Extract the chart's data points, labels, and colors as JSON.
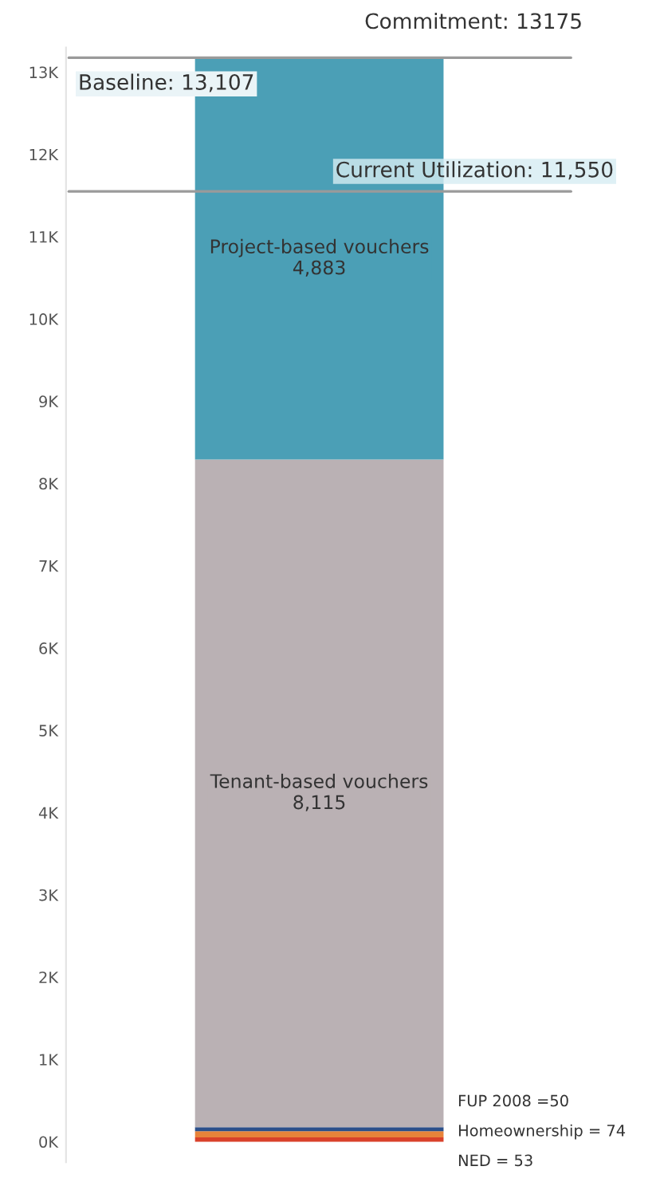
{
  "chart_data": {
    "type": "bar",
    "stacked": true,
    "categories": [
      null
    ],
    "series": [
      {
        "name": "NED",
        "color": "#d9412b",
        "values": [
          53
        ],
        "value_labels": [
          "= 53"
        ]
      },
      {
        "name": "Homeownership",
        "color": "#e8833a",
        "values": [
          74
        ],
        "value_labels": [
          "= 74"
        ]
      },
      {
        "name": "FUP 2008",
        "color": "#2b4f8a",
        "values": [
          50
        ],
        "value_labels": [
          "=50"
        ]
      },
      {
        "name": "Tenant-based vouchers",
        "color": "#bab1b4",
        "values": [
          8115
        ],
        "value_labels": [
          "8,115"
        ]
      },
      {
        "name": "Project-based vouchers",
        "color": "#4b9fb6",
        "values": [
          4883
        ],
        "value_labels": [
          "4,883"
        ]
      }
    ],
    "ylim": [
      -250,
      13300
    ],
    "yticks": [
      {
        "value": 0,
        "label": "0K"
      },
      {
        "value": 1000,
        "label": "1K"
      },
      {
        "value": 2000,
        "label": "2K"
      },
      {
        "value": 3000,
        "label": "3K"
      },
      {
        "value": 4000,
        "label": "4K"
      },
      {
        "value": 5000,
        "label": "5K"
      },
      {
        "value": 6000,
        "label": "6K"
      },
      {
        "value": 7000,
        "label": "7K"
      },
      {
        "value": 8000,
        "label": "8K"
      },
      {
        "value": 9000,
        "label": "9K"
      },
      {
        "value": 10000,
        "label": "10K"
      },
      {
        "value": 11000,
        "label": "11K"
      },
      {
        "value": 12000,
        "label": "12K"
      },
      {
        "value": 13000,
        "label": "13K"
      }
    ],
    "ref_lines": [
      {
        "axis": "y",
        "value": 13175,
        "label": "Commitment: 13175",
        "color": "#9a9a9a"
      },
      {
        "axis": "y",
        "value": 11550,
        "label": "Current Utilization: 11,550",
        "color": "#9a9a9a"
      }
    ],
    "annotations": [
      {
        "text": "Baseline: 13,107",
        "y": 13107
      }
    ],
    "grid": false,
    "legend": false
  }
}
